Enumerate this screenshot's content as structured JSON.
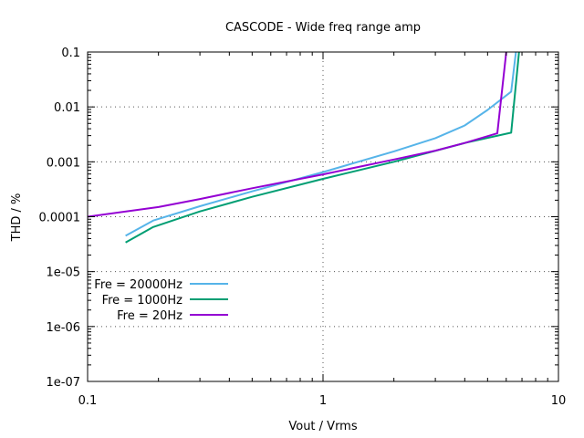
{
  "chart_data": {
    "type": "line",
    "title": "CASCODE - Wide freq range amp",
    "xlabel": "Vout / Vrms",
    "ylabel": "THD / %",
    "xscale": "log",
    "yscale": "log",
    "xlim": [
      0.1,
      10
    ],
    "ylim": [
      1e-07,
      0.1
    ],
    "x_ticks": [
      0.1,
      1,
      10
    ],
    "x_tick_labels": [
      "0.1",
      "1",
      "10"
    ],
    "y_ticks": [
      1e-07,
      1e-06,
      1e-05,
      0.0001,
      0.001,
      0.01,
      0.1
    ],
    "y_tick_labels": [
      "1e-07",
      "1e-06",
      "1e-05",
      "0.0001",
      "0.001",
      "0.01",
      "0.1"
    ],
    "grid": true,
    "legend_position": "left",
    "series": [
      {
        "name": "Fre = 20000Hz",
        "color": "#56b4e9",
        "points": [
          [
            0.145,
            4.5e-05
          ],
          [
            0.19,
            8.5e-05
          ],
          [
            0.3,
            0.000155
          ],
          [
            0.5,
            0.00029
          ],
          [
            1.0,
            0.00065
          ],
          [
            2.0,
            0.00155
          ],
          [
            3.0,
            0.0027
          ],
          [
            4.0,
            0.0046
          ],
          [
            5.0,
            0.0088
          ],
          [
            6.3,
            0.019
          ],
          [
            6.6,
            0.1
          ]
        ]
      },
      {
        "name": "Fre = 1000Hz",
        "color": "#009e73",
        "points": [
          [
            0.145,
            3.4e-05
          ],
          [
            0.19,
            6.5e-05
          ],
          [
            0.3,
            0.000125
          ],
          [
            0.5,
            0.00023
          ],
          [
            1.0,
            0.00049
          ],
          [
            2.0,
            0.001
          ],
          [
            4.0,
            0.0022
          ],
          [
            6.3,
            0.0034
          ],
          [
            6.8,
            0.1
          ]
        ]
      },
      {
        "name": "Fre = 20Hz",
        "color": "#9400d3",
        "points": [
          [
            0.1,
            0.0001
          ],
          [
            0.2,
            0.00015
          ],
          [
            0.3,
            0.00021
          ],
          [
            0.5,
            0.00033
          ],
          [
            1.0,
            0.00059
          ],
          [
            2.0,
            0.0011
          ],
          [
            3.0,
            0.0016
          ],
          [
            4.0,
            0.0022
          ],
          [
            5.5,
            0.0033
          ],
          [
            6.0,
            0.1
          ]
        ]
      }
    ]
  }
}
